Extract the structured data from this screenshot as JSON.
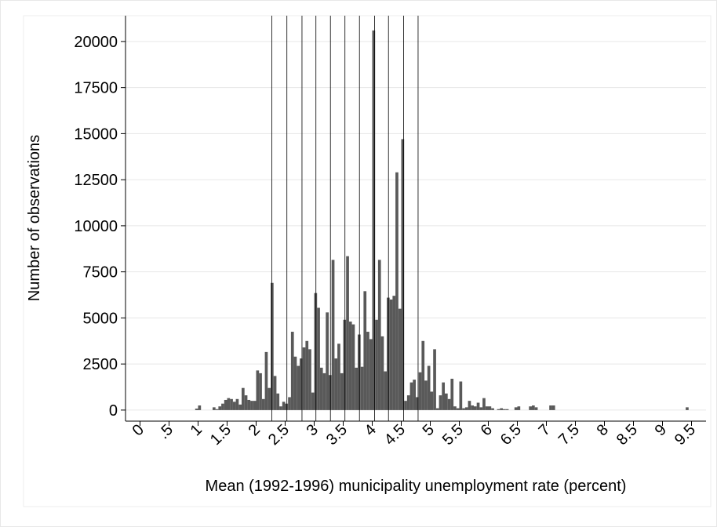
{
  "chart_data": {
    "type": "histogram",
    "xlabel": "Mean (1992-1996) municipality unemployment rate (percent)",
    "ylabel": "Number of observations",
    "color": "#595959",
    "bins": [
      0.9,
      0.95,
      1,
      1.05,
      1.1,
      1.15,
      1.2,
      1.25,
      1.3,
      1.35,
      1.4,
      1.45,
      1.5,
      1.55,
      1.6,
      1.65,
      1.7,
      1.75,
      1.8,
      1.85,
      1.9,
      1.95,
      2,
      2.05,
      2.1,
      2.15,
      2.2,
      2.25,
      2.3,
      2.35,
      2.4,
      2.45,
      2.5,
      2.55,
      2.6,
      2.65,
      2.7,
      2.75,
      2.8,
      2.85,
      2.9,
      2.95,
      3,
      3.05,
      3.1,
      3.15,
      3.2,
      3.25,
      3.3,
      3.35,
      3.4,
      3.45,
      3.5,
      3.55,
      3.6,
      3.65,
      3.7,
      3.75,
      3.8,
      3.85,
      3.9,
      3.95,
      4,
      4.05,
      4.1,
      4.15,
      4.2,
      4.25,
      4.3,
      4.35,
      4.4,
      4.45,
      4.5,
      4.55,
      4.6,
      4.65,
      4.7,
      4.75,
      4.8,
      4.85,
      4.9,
      4.95,
      5,
      5.05,
      5.1,
      5.15,
      5.2,
      5.25,
      5.3,
      5.35,
      5.4,
      5.45,
      5.5,
      5.55,
      5.6,
      5.65,
      5.7,
      5.75,
      5.8,
      5.85,
      5.9,
      5.95,
      6,
      6.05,
      6.1,
      6.15,
      6.2,
      6.25,
      6.3,
      6.35,
      6.4,
      6.45,
      6.5,
      6.55,
      6.6,
      6.65,
      6.7,
      6.75,
      6.8,
      6.85,
      6.9,
      6.95,
      7,
      7.05,
      7.1,
      7.15,
      7.2,
      7.25,
      9.4,
      9.45
    ],
    "values": [
      0,
      80,
      250,
      0,
      0,
      0,
      0,
      150,
      50,
      200,
      350,
      550,
      650,
      600,
      450,
      600,
      300,
      1200,
      800,
      550,
      500,
      500,
      2150,
      2000,
      600,
      3150,
      1200,
      6900,
      1850,
      900,
      200,
      450,
      350,
      700,
      4250,
      2900,
      2400,
      2800,
      3400,
      3750,
      3300,
      950,
      6350,
      5550,
      2300,
      2000,
      5300,
      1900,
      8150,
      2800,
      3600,
      2000,
      4900,
      8350,
      4800,
      4650,
      2300,
      4100,
      2350,
      6450,
      4250,
      3850,
      20600,
      4900,
      8150,
      4000,
      2100,
      6100,
      6000,
      6200,
      12900,
      5500,
      14700,
      500,
      800,
      1500,
      1650,
      700,
      2050,
      3750,
      1600,
      2400,
      1000,
      3300,
      100,
      800,
      1500,
      900,
      600,
      1700,
      200,
      100,
      1550,
      100,
      150,
      500,
      250,
      200,
      400,
      150,
      650,
      200,
      200,
      100,
      0,
      50,
      100,
      50,
      50,
      0,
      0,
      150,
      200,
      0,
      0,
      0,
      200,
      250,
      150,
      0,
      0,
      0,
      0,
      250,
      250,
      0,
      0,
      0,
      150
    ],
    "vlines": [
      2.27,
      2.53,
      2.79,
      3.03,
      3.28,
      3.53,
      3.78,
      4.04,
      4.28,
      4.54,
      4.79
    ],
    "xlim": [
      -0.25,
      9.75
    ],
    "xticks": [
      0,
      {
        "value": 0.5,
        "label": ".5"
      },
      1,
      1.5,
      2,
      2.5,
      3,
      3.5,
      4,
      4.5,
      5,
      5.5,
      6,
      6.5,
      7,
      7.5,
      8,
      8.5,
      9,
      9.5
    ],
    "ylim": [
      -600,
      21400
    ],
    "yticks": [
      0,
      2500,
      5000,
      7500,
      10000,
      12500,
      15000,
      17500,
      20000
    ],
    "grid": true
  }
}
